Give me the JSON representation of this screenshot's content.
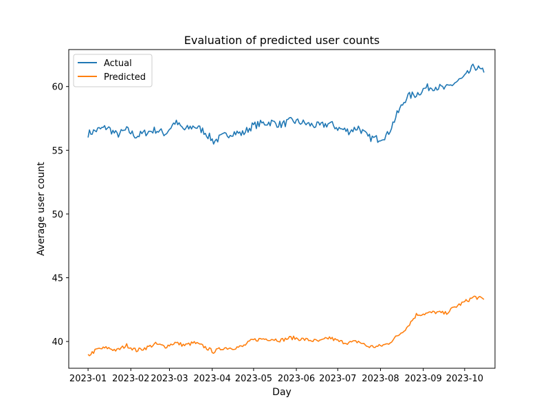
{
  "chart_data": {
    "type": "line",
    "title": "Evaluation of predicted user counts",
    "xlabel": "Day",
    "ylabel": "Average user count",
    "x_ticks": [
      "2023-01",
      "2023-02",
      "2023-03",
      "2023-04",
      "2023-05",
      "2023-06",
      "2023-07",
      "2023-08",
      "2023-09",
      "2023-10"
    ],
    "y_ticks": [
      40,
      45,
      50,
      55,
      60
    ],
    "xlim": [
      "2022-12-18",
      "2023-10-23"
    ],
    "ylim": [
      37.9,
      62.9
    ],
    "grid": false,
    "legend": "top-left",
    "series": [
      {
        "name": "Actual",
        "color": "#1f77b4",
        "points": [
          [
            "2023-01-01",
            56.3
          ],
          [
            "2023-01-08",
            56.6
          ],
          [
            "2023-01-15",
            56.8
          ],
          [
            "2023-01-22",
            56.2
          ],
          [
            "2023-01-29",
            56.6
          ],
          [
            "2023-02-05",
            56.1
          ],
          [
            "2023-02-12",
            56.4
          ],
          [
            "2023-02-19",
            56.6
          ],
          [
            "2023-02-26",
            56.3
          ],
          [
            "2023-03-05",
            57.2
          ],
          [
            "2023-03-12",
            56.6
          ],
          [
            "2023-03-19",
            56.9
          ],
          [
            "2023-03-26",
            56.5
          ],
          [
            "2023-04-02",
            55.7
          ],
          [
            "2023-04-09",
            56.1
          ],
          [
            "2023-04-16",
            56.4
          ],
          [
            "2023-04-23",
            56.3
          ],
          [
            "2023-04-30",
            56.9
          ],
          [
            "2023-05-07",
            57.1
          ],
          [
            "2023-05-14",
            57.2
          ],
          [
            "2023-05-21",
            57.0
          ],
          [
            "2023-05-28",
            57.3
          ],
          [
            "2023-06-04",
            57.2
          ],
          [
            "2023-06-11",
            57.0
          ],
          [
            "2023-06-18",
            56.9
          ],
          [
            "2023-06-25",
            57.1
          ],
          [
            "2023-07-02",
            56.7
          ],
          [
            "2023-07-09",
            56.5
          ],
          [
            "2023-07-16",
            56.8
          ],
          [
            "2023-07-23",
            56.0
          ],
          [
            "2023-07-30",
            55.9
          ],
          [
            "2023-08-06",
            56.2
          ],
          [
            "2023-08-13",
            57.8
          ],
          [
            "2023-08-20",
            59.2
          ],
          [
            "2023-08-27",
            59.4
          ],
          [
            "2023-09-03",
            59.9
          ],
          [
            "2023-09-10",
            60.0
          ],
          [
            "2023-09-17",
            59.8
          ],
          [
            "2023-09-24",
            60.3
          ],
          [
            "2023-10-01",
            60.7
          ],
          [
            "2023-10-08",
            61.6
          ],
          [
            "2023-10-15",
            61.1
          ]
        ]
      },
      {
        "name": "Predicted",
        "color": "#ff7f0e",
        "points": [
          [
            "2023-01-01",
            38.9
          ],
          [
            "2023-01-08",
            39.4
          ],
          [
            "2023-01-15",
            39.5
          ],
          [
            "2023-01-22",
            39.3
          ],
          [
            "2023-01-29",
            39.7
          ],
          [
            "2023-02-05",
            39.3
          ],
          [
            "2023-02-12",
            39.5
          ],
          [
            "2023-02-19",
            39.8
          ],
          [
            "2023-02-26",
            39.6
          ],
          [
            "2023-03-05",
            39.9
          ],
          [
            "2023-03-12",
            39.7
          ],
          [
            "2023-03-19",
            39.9
          ],
          [
            "2023-03-26",
            39.6
          ],
          [
            "2023-04-02",
            39.2
          ],
          [
            "2023-04-09",
            39.5
          ],
          [
            "2023-04-16",
            39.5
          ],
          [
            "2023-04-23",
            39.6
          ],
          [
            "2023-04-30",
            40.1
          ],
          [
            "2023-05-07",
            40.2
          ],
          [
            "2023-05-14",
            40.2
          ],
          [
            "2023-05-21",
            40.1
          ],
          [
            "2023-05-28",
            40.3
          ],
          [
            "2023-06-04",
            40.2
          ],
          [
            "2023-06-11",
            40.1
          ],
          [
            "2023-06-18",
            40.0
          ],
          [
            "2023-06-25",
            40.3
          ],
          [
            "2023-07-02",
            40.0
          ],
          [
            "2023-07-09",
            39.9
          ],
          [
            "2023-07-16",
            40.0
          ],
          [
            "2023-07-23",
            39.6
          ],
          [
            "2023-07-30",
            39.6
          ],
          [
            "2023-08-06",
            39.8
          ],
          [
            "2023-08-13",
            40.4
          ],
          [
            "2023-08-20",
            41.1
          ],
          [
            "2023-08-27",
            42.1
          ],
          [
            "2023-09-03",
            42.2
          ],
          [
            "2023-09-10",
            42.3
          ],
          [
            "2023-09-17",
            42.2
          ],
          [
            "2023-09-24",
            42.7
          ],
          [
            "2023-10-01",
            43.1
          ],
          [
            "2023-10-08",
            43.5
          ],
          [
            "2023-10-15",
            43.3
          ]
        ]
      }
    ]
  }
}
